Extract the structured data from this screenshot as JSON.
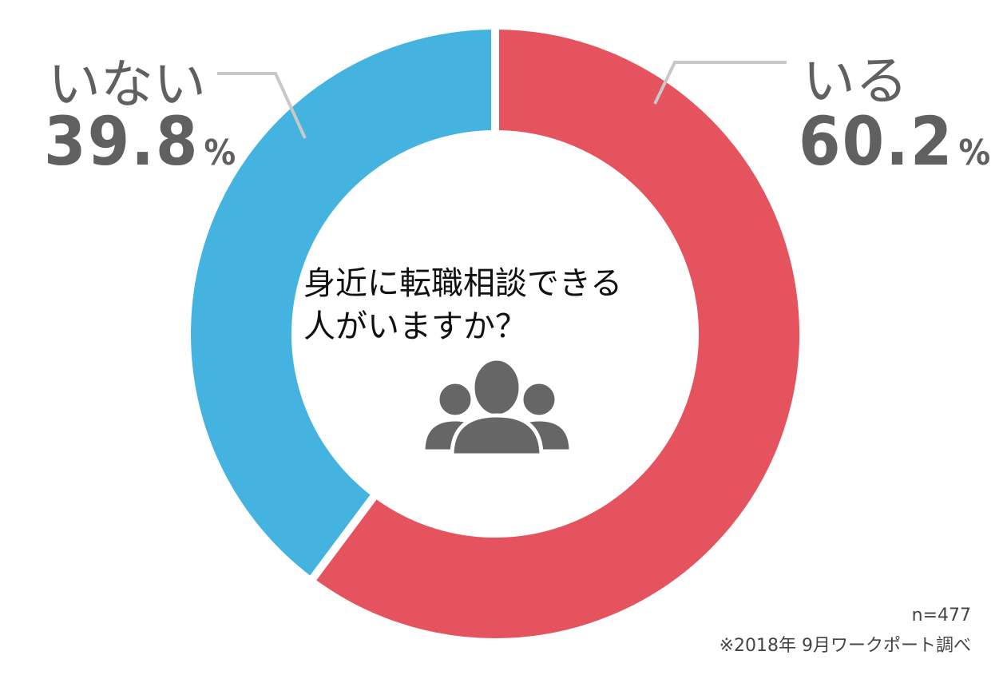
{
  "chart_data": {
    "type": "pie",
    "title": "身近に転職相談できる人がいますか？",
    "title_lines": [
      "身近に転職相談できる",
      "人がいますか？"
    ],
    "slices": [
      {
        "label": "いる",
        "value": 60.2,
        "color": "#E5535E"
      },
      {
        "label": "いない",
        "value": 39.8,
        "color": "#45B3E0"
      }
    ],
    "unit": "%",
    "center_icon": "people-group-icon",
    "sample_size": "n=477",
    "source": "※2018年 9月ワークポート調べ"
  }
}
